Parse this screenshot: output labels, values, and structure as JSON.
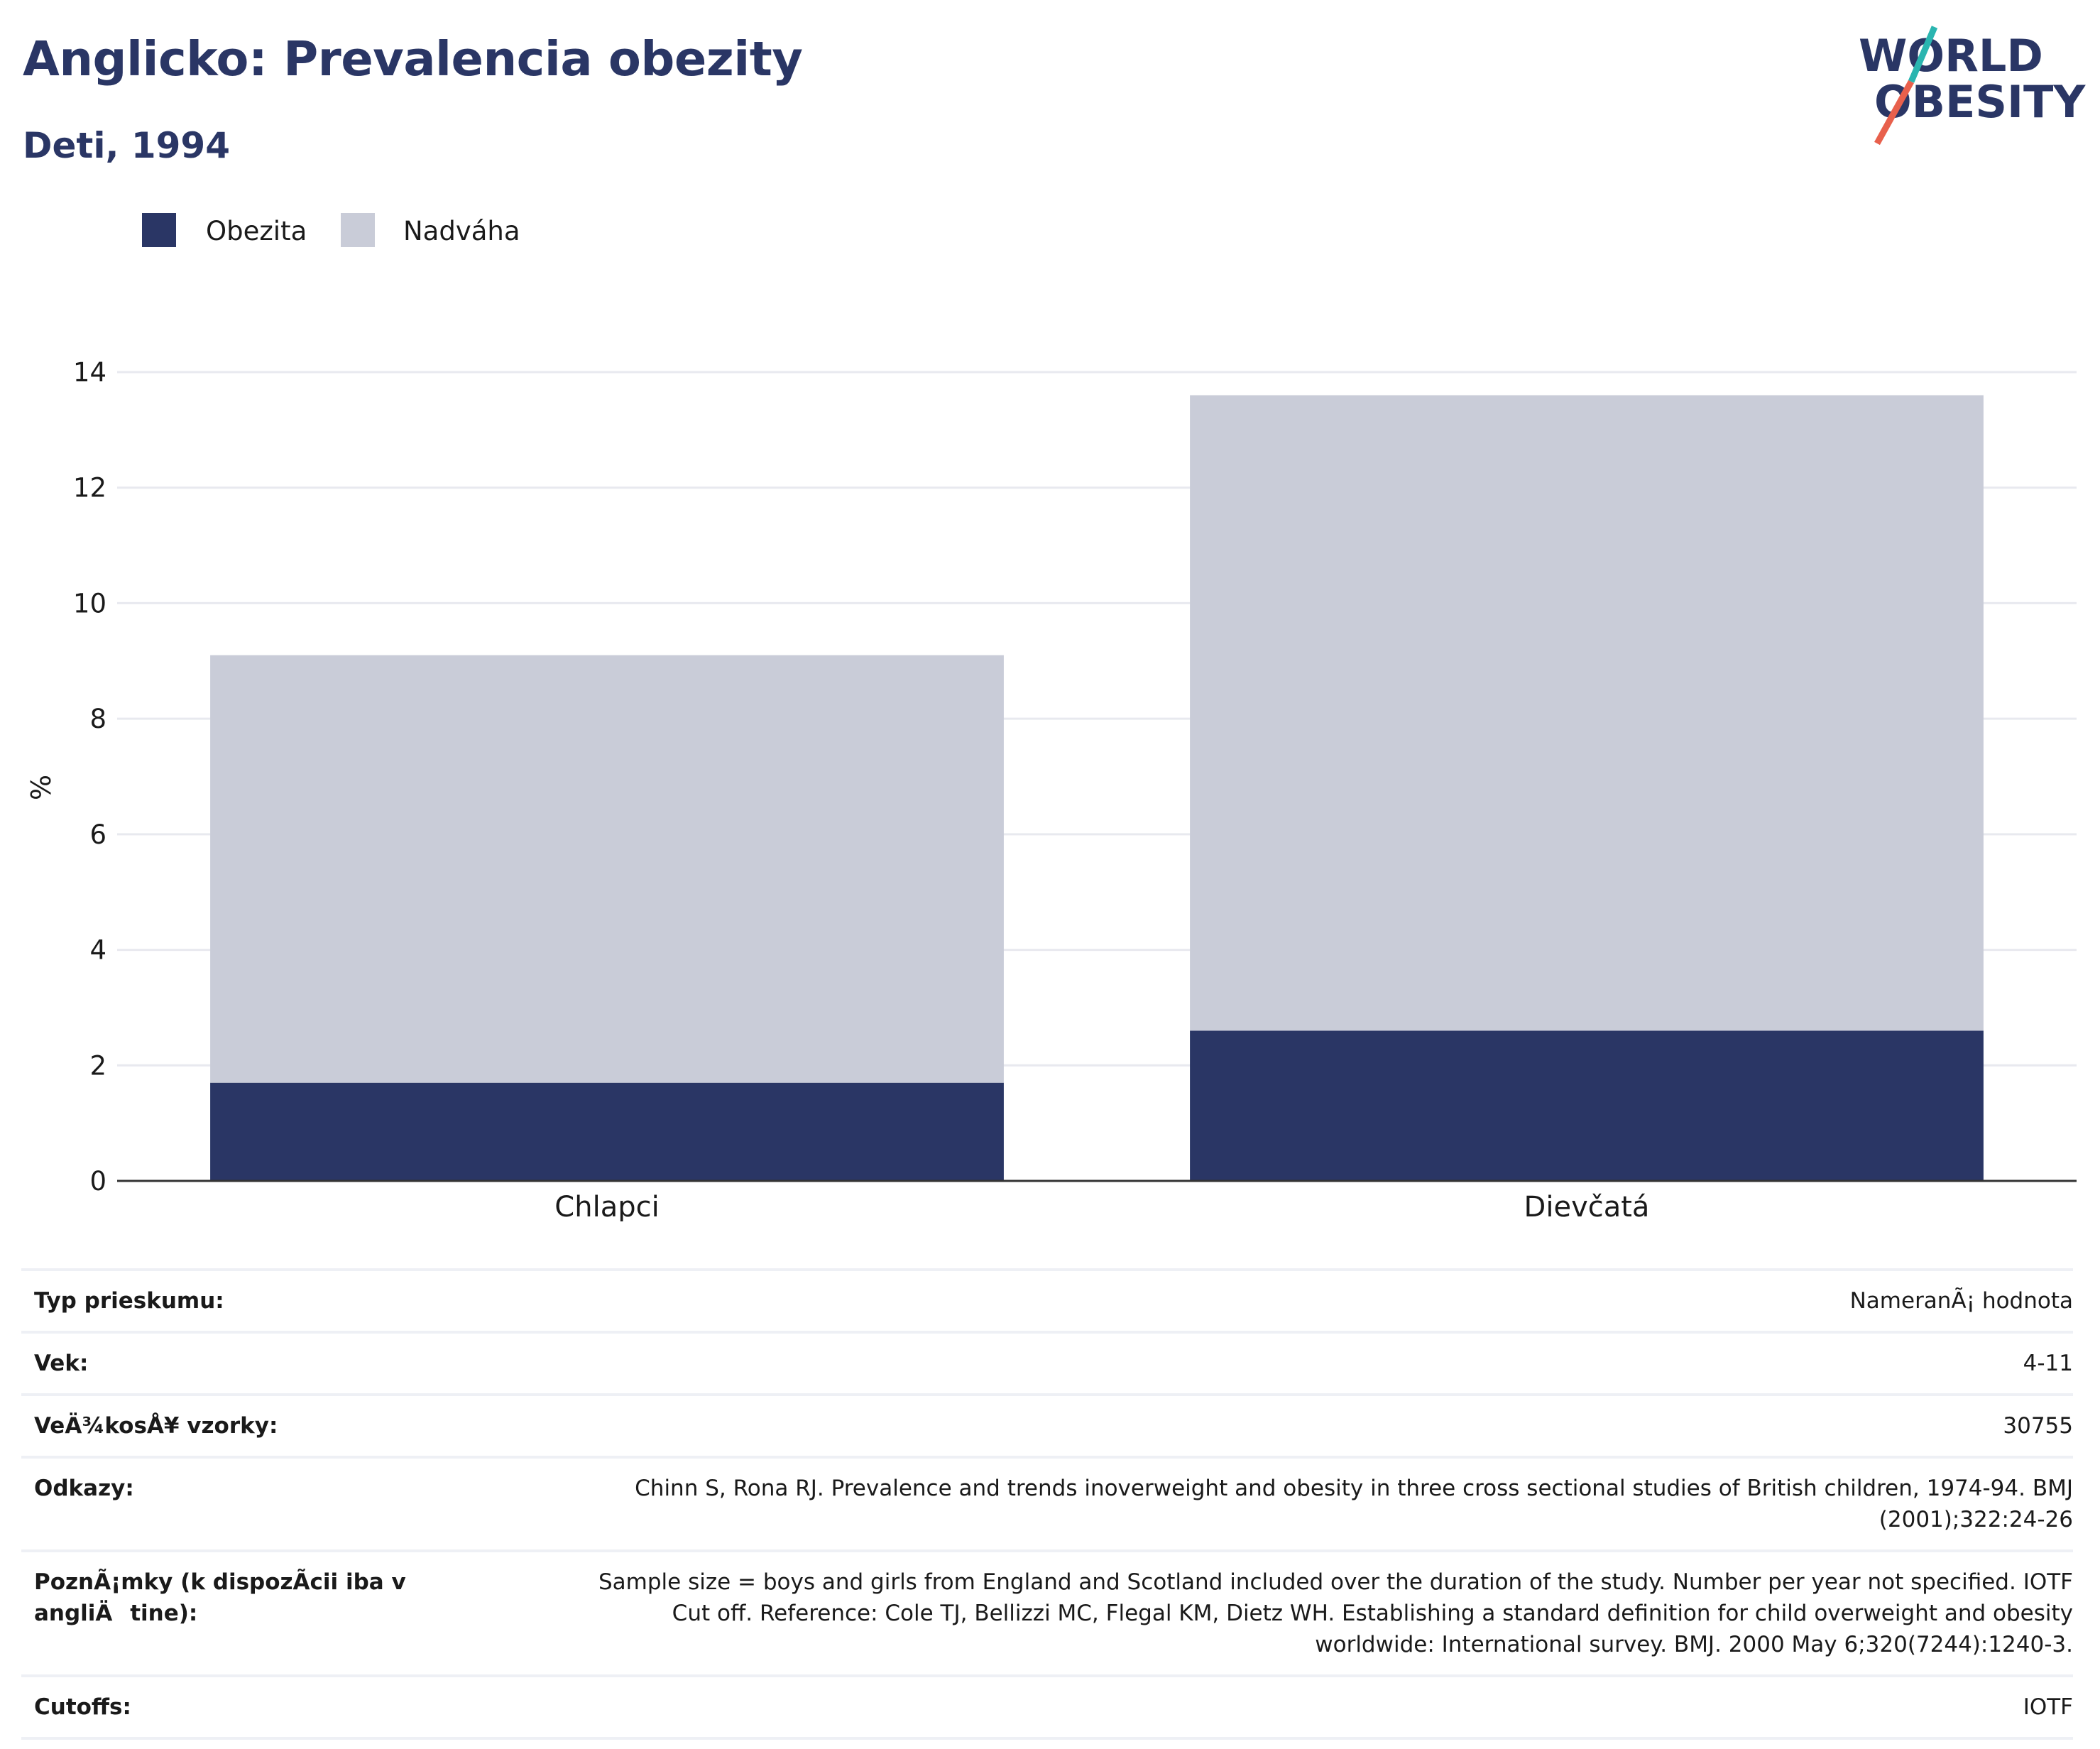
{
  "header": {
    "title": "Anglicko: Prevalencia obezity",
    "subtitle": "Deti, 1994"
  },
  "logo": {
    "line1": "WORLD",
    "line2": "OBESITY",
    "accent_teal": "#2ab5b0",
    "accent_coral": "#e8604c"
  },
  "colors": {
    "obezita": "#2a3665",
    "nadvaha": "#c9ccd8",
    "title": "#2a3665"
  },
  "legend": [
    {
      "label": "Obezita",
      "color": "#2a3665"
    },
    {
      "label": "Nadváha",
      "color": "#c9ccd8"
    }
  ],
  "chart_data": {
    "type": "bar",
    "stacked": true,
    "categories": [
      "Chlapci",
      "Dievčatá"
    ],
    "series": [
      {
        "name": "Obezita",
        "values": [
          1.7,
          2.6
        ]
      },
      {
        "name": "Nadváha",
        "values": [
          7.4,
          11.0
        ]
      }
    ],
    "ylabel": "%",
    "ylim": [
      0,
      14
    ],
    "yticks": [
      0,
      2,
      4,
      6,
      8,
      10,
      12,
      14
    ],
    "grid": true,
    "legend_position": "top-left"
  },
  "info_table": [
    {
      "label": "Typ prieskumu:",
      "value": "NameranÃ¡ hodnota"
    },
    {
      "label": "Vek:",
      "value": "4-11"
    },
    {
      "label": "VeÄ¾kosÅ¥ vzorky:",
      "value": "30755"
    },
    {
      "label": "Odkazy:",
      "value": "Chinn S, Rona RJ. Prevalence and trends inoverweight and obesity in three cross sectional studies of British children, 1974-94. BMJ (2001);322:24-26"
    },
    {
      "label": "PoznÃ¡mky (k dispozÃ­cii iba v angliÄtine):",
      "value": "Sample size = boys and girls from England and Scotland included over the duration of the study. Number per year not specified. IOTF Cut off. Reference: Cole TJ, Bellizzi MC, Flegal KM, Dietz WH. Establishing a standard definition for child overweight and obesity worldwide: International survey. BMJ. 2000 May 6;320(7244):1240-3."
    },
    {
      "label": "Cutoffs:",
      "value": "IOTF"
    }
  ]
}
